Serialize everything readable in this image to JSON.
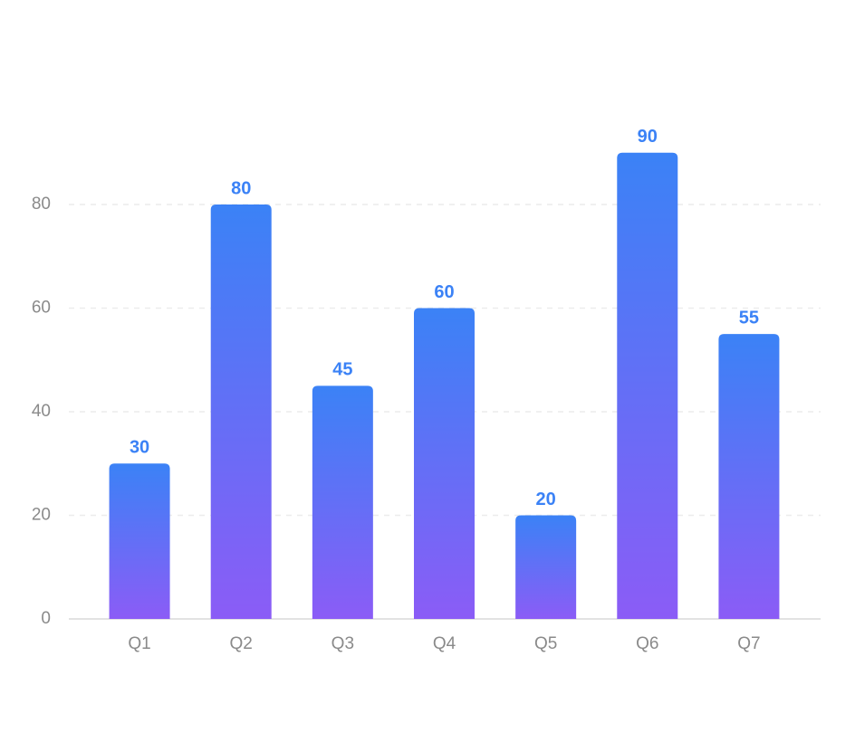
{
  "chart_data": {
    "type": "bar",
    "categories": [
      "Q1",
      "Q2",
      "Q3",
      "Q4",
      "Q5",
      "Q6",
      "Q7"
    ],
    "values": [
      30,
      80,
      45,
      60,
      20,
      90,
      55
    ],
    "color": {
      "top": "#3b82f6",
      "bottom": "#8b5cf6"
    },
    "value_label_color": "#3b82f6",
    "ylim": [
      0,
      100
    ],
    "yticks": [
      0,
      20,
      40,
      60,
      80
    ],
    "grid": true
  }
}
